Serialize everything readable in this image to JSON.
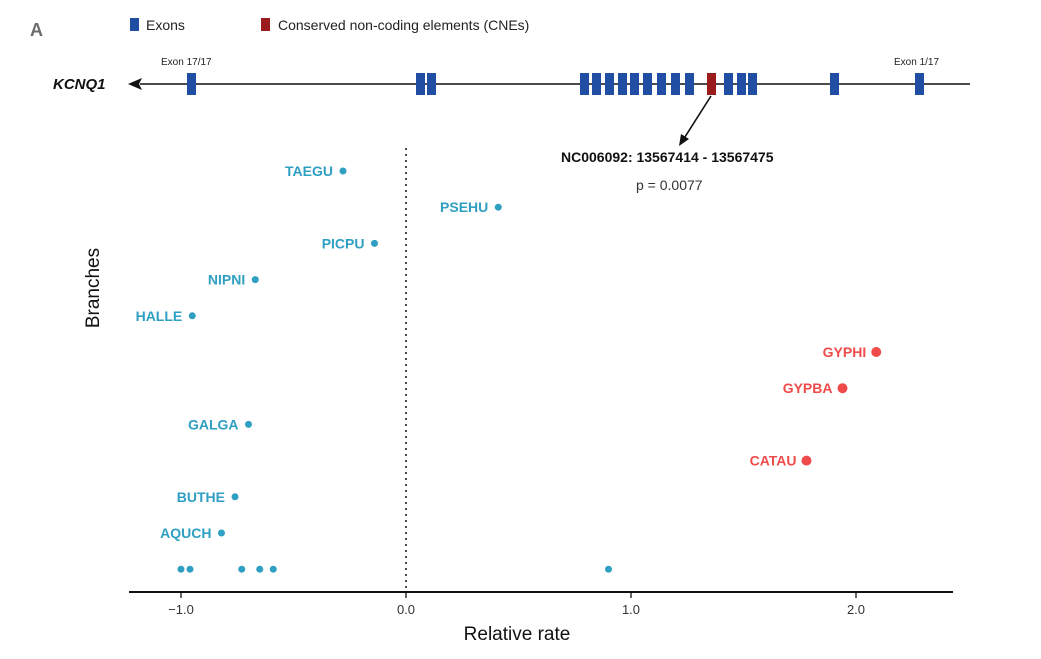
{
  "panel_label": "A",
  "legend": [
    {
      "label": "Exons",
      "color": "#1f4ea3"
    },
    {
      "label": "Conserved non-coding elements (CNEs)",
      "color": "#9b1c1c"
    }
  ],
  "gene": {
    "name": "KCNQ1",
    "exon_labels": {
      "left": "Exon 17/17",
      "right": "Exon 1/17"
    }
  },
  "annotation": {
    "cne": "NC006092: 13567414 - 13567475",
    "pvalue": "p = 0.0077"
  },
  "colors": {
    "background_branch": "#2f9fc2",
    "foreground_branch": "#f04b4b",
    "exon": "#1f4ea3",
    "cne": "#9b1c1c"
  },
  "chart_data": {
    "type": "scatter",
    "xlabel": "Relative rate",
    "ylabel": "Branches",
    "xlim": [
      -1.22,
      2.45
    ],
    "xticks": [
      {
        "value": -1.0,
        "label": "−1.0"
      },
      {
        "value": 0.0,
        "label": "0.0"
      },
      {
        "value": 1.0,
        "label": "1.0"
      },
      {
        "value": 2.0,
        "label": "2.0"
      }
    ],
    "reference_line_x": 0,
    "grid": false,
    "points": [
      {
        "label": "TAEGU",
        "x": -0.28,
        "rank": 1,
        "group": "background"
      },
      {
        "label": "PSEHU",
        "x": 0.41,
        "rank": 2,
        "group": "background"
      },
      {
        "label": "PICPU",
        "x": -0.14,
        "rank": 3,
        "group": "background"
      },
      {
        "label": "NIPNI",
        "x": -0.67,
        "rank": 4,
        "group": "background"
      },
      {
        "label": "HALLE",
        "x": -0.95,
        "rank": 5,
        "group": "background"
      },
      {
        "label": "GYPHI",
        "x": 2.09,
        "rank": 6,
        "group": "foreground"
      },
      {
        "label": "GYPBA",
        "x": 1.94,
        "rank": 7,
        "group": "foreground"
      },
      {
        "label": "GALGA",
        "x": -0.7,
        "rank": 8,
        "group": "background"
      },
      {
        "label": "CATAU",
        "x": 1.78,
        "rank": 9,
        "group": "foreground"
      },
      {
        "label": "BUTHE",
        "x": -0.76,
        "rank": 10,
        "group": "background"
      },
      {
        "label": "AQUCH",
        "x": -0.82,
        "rank": 11,
        "group": "background"
      },
      {
        "label": "",
        "x": -1.0,
        "rank": 12,
        "group": "background"
      },
      {
        "label": "",
        "x": -0.96,
        "rank": 12,
        "group": "background"
      },
      {
        "label": "",
        "x": -0.73,
        "rank": 12,
        "group": "background"
      },
      {
        "label": "",
        "x": -0.65,
        "rank": 12,
        "group": "background"
      },
      {
        "label": "",
        "x": -0.59,
        "rank": 12,
        "group": "background"
      },
      {
        "label": "",
        "x": 0.9,
        "rank": 12,
        "group": "background"
      }
    ]
  }
}
